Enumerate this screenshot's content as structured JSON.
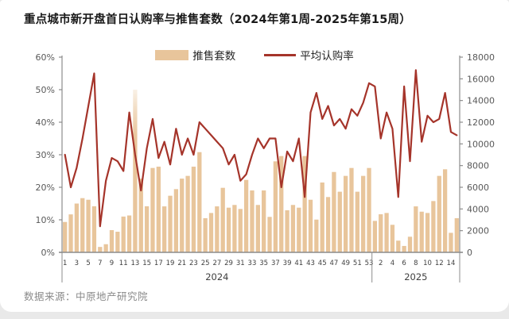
{
  "title": "重点城市新开盘首日认购率与推售套数（2024年第1周-2025年第15周）",
  "source": "数据来源：中原地产研究院",
  "colors": {
    "bar": "#E8C59B",
    "line": "#A5342A",
    "axis": "#8c8c8c",
    "tick_label": "#595959",
    "x_label": "#404040",
    "title": "#1a1a1a",
    "source": "#8a8a8a"
  },
  "legend": [
    {
      "label": "推售套数",
      "type": "bar",
      "color": "#E8C59B"
    },
    {
      "label": "平均认购率",
      "type": "line",
      "color": "#A5342A"
    }
  ],
  "chart_data": {
    "type": "bar+line combo",
    "title": "重点城市新开盘首日认购率与推售套数（2024年第1周-2025年第15周）",
    "legend_position": "top",
    "grid": false,
    "left_axis": {
      "label": "平均认购率",
      "min": 0,
      "max": 60,
      "step": 10,
      "unit": "%",
      "ticks": [
        "0%",
        "10%",
        "20%",
        "30%",
        "40%",
        "50%",
        "60%"
      ]
    },
    "right_axis": {
      "label": "推售套数",
      "min": 0,
      "max": 18000,
      "step": 2000,
      "ticks": [
        "0",
        "2000",
        "4000",
        "6000",
        "8000",
        "10000",
        "12000",
        "14000",
        "16000",
        "18000"
      ]
    },
    "x_groups": [
      {
        "year": "2024",
        "weeks": 53,
        "shown_tick_labels": [
          1,
          3,
          5,
          7,
          9,
          11,
          13,
          15,
          17,
          19,
          21,
          23,
          25,
          27,
          29,
          31,
          33,
          35,
          37,
          39,
          41,
          43,
          45,
          47,
          49,
          51,
          53
        ]
      },
      {
        "year": "2025",
        "weeks": 15,
        "shown_tick_labels": [
          2,
          4,
          6,
          8,
          10,
          12,
          14
        ]
      }
    ],
    "series": [
      {
        "name": "推售套数",
        "type": "bar",
        "axis": "right",
        "values_2024": [
          2800,
          3500,
          4500,
          5000,
          4850,
          4250,
          500,
          750,
          2050,
          1900,
          3300,
          3400,
          15000,
          6800,
          4250,
          7780,
          7900,
          4240,
          5220,
          5830,
          6800,
          7050,
          7900,
          9240,
          3150,
          3630,
          4240,
          5950,
          4120,
          4370,
          4000,
          6680,
          5710,
          4370,
          5710,
          3270,
          8390,
          8880,
          3880,
          4370,
          4120,
          8880,
          4850,
          3020,
          6440,
          5100,
          7410,
          5590,
          7050,
          7780,
          5590,
          7050,
          7780
        ],
        "values_2025": [
          2900,
          3510,
          3630,
          2540,
          1080,
          590,
          1440,
          4240,
          3750,
          3630,
          4730,
          7050,
          7660,
          1800,
          3150
        ]
      },
      {
        "name": "平均认购率",
        "type": "line",
        "axis": "left",
        "unit": "%",
        "values_2024": [
          30,
          20,
          26,
          35,
          45,
          55,
          8,
          22,
          29,
          28,
          25,
          43,
          30,
          19,
          32,
          41,
          29,
          34,
          27,
          38,
          30,
          35,
          30,
          40,
          38,
          36,
          34,
          32,
          27,
          30,
          22,
          24,
          30,
          35,
          32,
          35,
          35,
          20,
          31,
          28,
          35,
          17,
          43,
          49,
          41,
          45,
          39,
          41,
          38,
          44,
          42,
          46,
          52
        ],
        "values_2025": [
          51,
          35,
          43,
          38,
          17,
          51,
          28,
          56,
          34,
          42,
          40,
          41,
          49,
          37,
          36
        ]
      }
    ]
  }
}
